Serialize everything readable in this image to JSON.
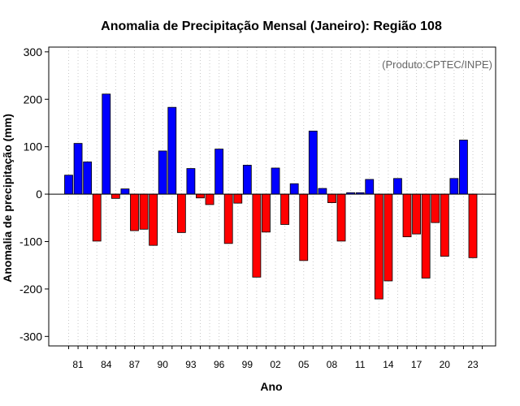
{
  "chart_data": {
    "type": "bar",
    "title": "Anomalia de Precipitação Mensal (Janeiro): Região 108",
    "xlabel": "Ano",
    "ylabel": "Anomalia de precipitação (mm)",
    "credit": "(Produto:CPTEC/INPE)",
    "ylim": [
      -320,
      310
    ],
    "yticks": [
      -300,
      -200,
      -100,
      0,
      100,
      200,
      300
    ],
    "positive_color": "#0000ff",
    "negative_color": "#ff0000",
    "grid": "vertical dotted",
    "categories": [
      "1980",
      "1981",
      "1982",
      "1983",
      "1984",
      "1985",
      "1986",
      "1987",
      "1988",
      "1989",
      "1990",
      "1991",
      "1992",
      "1993",
      "1994",
      "1995",
      "1996",
      "1997",
      "1998",
      "1999",
      "2000",
      "2001",
      "2002",
      "2003",
      "2004",
      "2005",
      "2006",
      "2007",
      "2008",
      "2009",
      "2010",
      "2011",
      "2012",
      "2013",
      "2014",
      "2015",
      "2016",
      "2017",
      "2018",
      "2019",
      "2020",
      "2021",
      "2022",
      "2023",
      "2024"
    ],
    "values": [
      40,
      107,
      68,
      -99,
      211,
      -9,
      11,
      -77,
      -74,
      -108,
      91,
      183,
      -81,
      54,
      -8,
      -22,
      95,
      -104,
      -19,
      61,
      -175,
      -80,
      55,
      -64,
      22,
      -140,
      133,
      12,
      -18,
      -99,
      3,
      3,
      31,
      -221,
      -183,
      33,
      -90,
      -84,
      -177,
      -60,
      -131,
      33,
      114,
      -134,
      0
    ],
    "tick_labels": [
      {
        "index": 1,
        "label": "81"
      },
      {
        "index": 4,
        "label": "84"
      },
      {
        "index": 7,
        "label": "87"
      },
      {
        "index": 10,
        "label": "90"
      },
      {
        "index": 13,
        "label": "93"
      },
      {
        "index": 16,
        "label": "96"
      },
      {
        "index": 19,
        "label": "99"
      },
      {
        "index": 22,
        "label": "02"
      },
      {
        "index": 25,
        "label": "05"
      },
      {
        "index": 28,
        "label": "08"
      },
      {
        "index": 31,
        "label": "11"
      },
      {
        "index": 34,
        "label": "14"
      },
      {
        "index": 37,
        "label": "17"
      },
      {
        "index": 40,
        "label": "20"
      },
      {
        "index": 43,
        "label": "23"
      }
    ]
  }
}
